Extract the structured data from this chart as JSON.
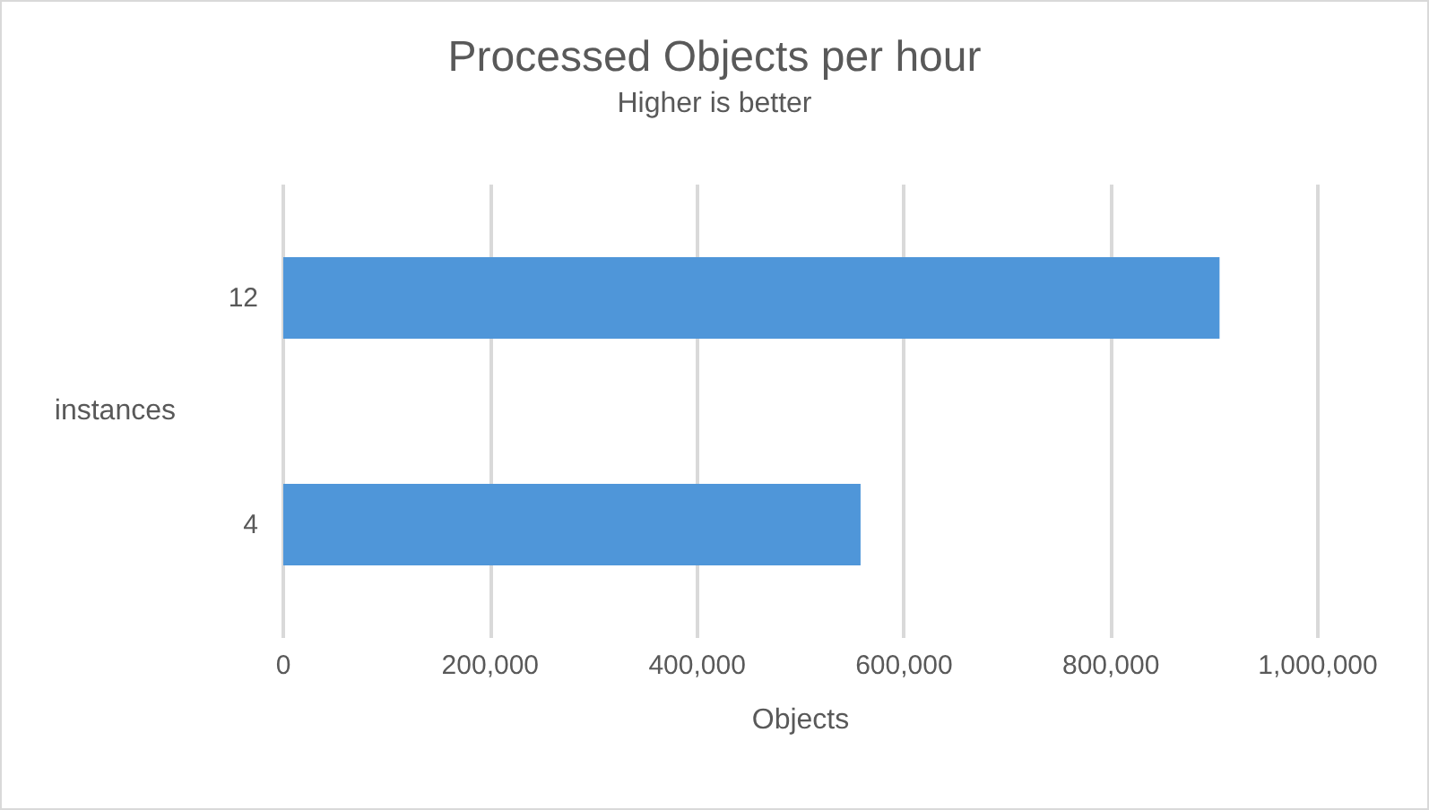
{
  "chart_data": {
    "type": "bar",
    "orientation": "horizontal",
    "title": "Processed Objects per hour",
    "subtitle": "Higher is better",
    "xlabel": "Objects",
    "ylabel": "instances",
    "categories": [
      "12",
      "4"
    ],
    "series": [
      {
        "color": "#4f96d9",
        "values": [
          905000,
          558000
        ]
      }
    ],
    "xlim": [
      0,
      1000000
    ],
    "xticks": [
      0,
      {
        "value": 200000,
        "label": "200,000"
      },
      {
        "value": 400000,
        "label": "400,000"
      },
      {
        "value": 600000,
        "label": "600,000"
      },
      {
        "value": 800000,
        "label": "800,000"
      },
      {
        "value": 1000000,
        "label": "1,000,000"
      }
    ],
    "grid": "x"
  }
}
